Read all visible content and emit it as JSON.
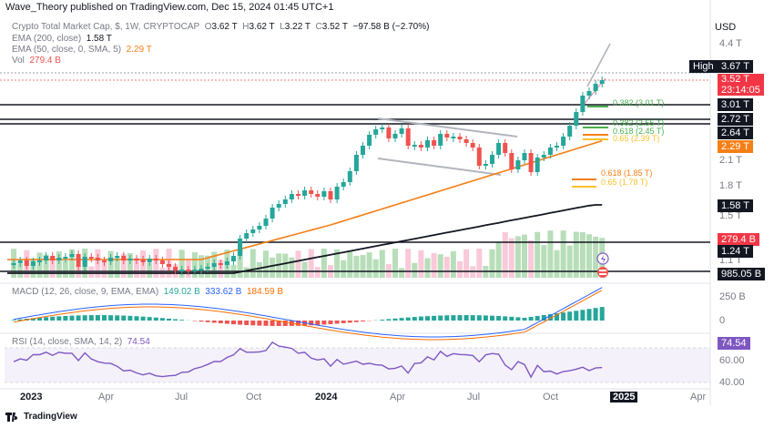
{
  "header": {
    "published": "Wave_Theory published on TradingView.com, Dec 15, 2024 01:45 UTC+1"
  },
  "currency_button": "USD",
  "legend": {
    "symbol": "Crypto Total Market Cap, $, 1W, CRYPTOCAP",
    "o_label": "O",
    "o": "3.62 T",
    "h_label": "H",
    "h": "3.62 T",
    "l_label": "L",
    "l": "3.22 T",
    "c_label": "C",
    "c": "3.52 T",
    "change": "−97.58 B (−2.70%)",
    "ema200_label": "EMA (200, close)",
    "ema200_value": "1.58 T",
    "ema50_label": "EMA (50, close, 0, SMA, 5)",
    "ema50_value": "2.29 T",
    "vol_label": "Vol",
    "vol_value": "279.4 B"
  },
  "price_scale": [
    "4.4 T",
    "2.1 T",
    "1.8 T",
    "1.5 T",
    "1.1 T"
  ],
  "price_tags": {
    "high_label": "High",
    "high_value": "3.67 T",
    "last_value": "3.52 T",
    "countdown": "23:14:05",
    "l1": "3.01 T",
    "l2": "2.72 T",
    "l3": "2.64 T",
    "ema50": "2.29 T",
    "ema200": "1.58 T",
    "vol": "279.4 B",
    "l4": "1.24 T",
    "l5": "985.05 B"
  },
  "fib_labels": [
    {
      "text": "0.382 (3.01 T)",
      "color": "#4caf50"
    },
    {
      "text": "0.382 (2.55 T)",
      "color": "#4caf50"
    },
    {
      "text": "0.618 (2.45 T)",
      "color": "#4caf50"
    },
    {
      "text": "0.65 (2.39 T)",
      "color": "#fbc02d"
    },
    {
      "text": "0.618 (1.85 T)",
      "color": "#f57f17"
    },
    {
      "text": "0.65 (1.78 T)",
      "color": "#fbc02d"
    }
  ],
  "macd": {
    "label": "MACD (12, 26, close, 9, EMA, EMA)",
    "v1": "149.02 B",
    "v2": "333.62 B",
    "v3": "184.59 B",
    "scale": [
      "250 B",
      "0"
    ]
  },
  "rsi": {
    "label": "RSI (14, close, SMA, 14, 2)",
    "value": "74.54",
    "scale": [
      "60.00",
      "40.00"
    ]
  },
  "time_axis": [
    "2023",
    "Apr",
    "Jul",
    "Oct",
    "2024",
    "Apr",
    "Jul",
    "Oct",
    "2025",
    "Apr"
  ],
  "footer": "TradingView",
  "colors": {
    "up": "#26a69a",
    "down": "#ef5350",
    "ema50": "#f57f17",
    "ema200": "#131722",
    "rsi": "#7e57c2",
    "macd": "#2962ff",
    "signal": "#ff6d00"
  }
}
